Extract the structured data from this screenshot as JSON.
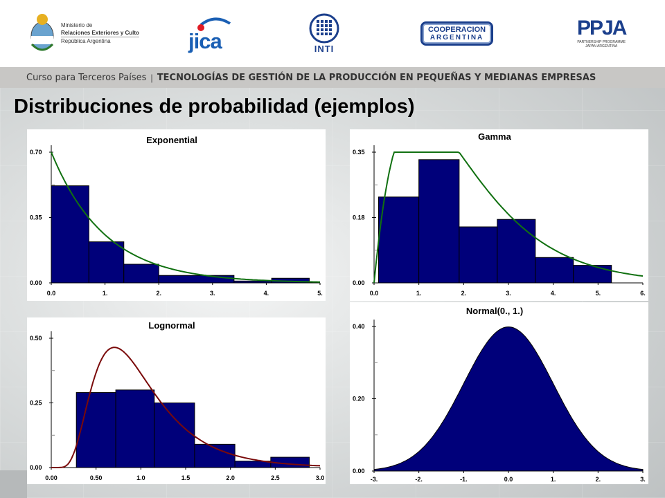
{
  "header": {
    "logos": {
      "ministry": {
        "line1": "Ministerio de",
        "line2": "Relaciones Exteriores y Culto",
        "line3": "República Argentina"
      },
      "jica": "jica",
      "inti": "INTI",
      "cooperacion": {
        "line1": "COOPERACION",
        "line2": "ARGENTINA"
      },
      "ppja": {
        "mark": "PPJA",
        "line1": "PARTNERSHIP PROGRAMME",
        "line2": "JAPAN ARGENTINA"
      }
    },
    "course": "Curso para Terceros Países",
    "course_title": "TECNOLOGÍAS DE GESTIÓN DE LA PRODUCCIÓN EN PEQUEÑAS Y MEDIANAS EMPRESAS"
  },
  "slide_title": "Distribuciones de probabilidad (ejemplos)",
  "chart_data": [
    {
      "type": "bar",
      "title": "Exponential",
      "xlim": [
        0,
        5
      ],
      "ylim": [
        0,
        0.7
      ],
      "xticks": [
        "0.0",
        "1.",
        "2.",
        "3.",
        "4.",
        "5."
      ],
      "yticks": [
        "0.00",
        "0.35",
        "0.70"
      ],
      "bins": [
        [
          0,
          0.7
        ],
        [
          0.7,
          1.35
        ],
        [
          1.35,
          2.0
        ],
        [
          2.0,
          3.4
        ],
        [
          3.4,
          4.1
        ],
        [
          4.1,
          4.8
        ]
      ],
      "values": [
        0.52,
        0.22,
        0.1,
        0.04,
        0.01,
        0.025
      ],
      "curve": {
        "name": "exponential",
        "rate": 1.0,
        "scale": 0.7,
        "color": "#107010"
      },
      "bar_color": "#00007a"
    },
    {
      "type": "bar",
      "title": "Gamma",
      "xlim": [
        0,
        6
      ],
      "ylim": [
        0,
        0.35
      ],
      "xticks": [
        "0.0",
        "1.",
        "2.",
        "3.",
        "4.",
        "5.",
        "6."
      ],
      "yticks": [
        "0.00",
        "0.18",
        "0.35"
      ],
      "bins": [
        [
          0.1,
          1.0
        ],
        [
          1.0,
          1.9
        ],
        [
          1.9,
          2.75
        ],
        [
          2.75,
          3.6
        ],
        [
          3.6,
          4.45
        ],
        [
          4.45,
          5.3
        ]
      ],
      "values": [
        0.23,
        0.33,
        0.15,
        0.17,
        0.068,
        0.047
      ],
      "curve": {
        "name": "gamma",
        "shape": 2.0,
        "scale": 1.0,
        "color": "#107010"
      },
      "bar_color": "#00007a"
    },
    {
      "type": "bar",
      "title": "Lognormal",
      "xlim": [
        0,
        3.0
      ],
      "ylim": [
        0,
        0.5
      ],
      "xticks": [
        "0.00",
        "0.50",
        "1.0",
        "1.5",
        "2.0",
        "2.5",
        "3.0"
      ],
      "yticks": [
        "0.00",
        "0.25",
        "0.50"
      ],
      "bins": [
        [
          0.28,
          0.72
        ],
        [
          0.72,
          1.15
        ],
        [
          1.15,
          1.6
        ],
        [
          1.6,
          2.05
        ],
        [
          2.05,
          2.45
        ],
        [
          2.45,
          2.88
        ]
      ],
      "values": [
        0.29,
        0.3,
        0.25,
        0.09,
        0.025,
        0.04
      ],
      "curve": {
        "name": "lognormal",
        "mu": -0.1,
        "sigma": 0.5,
        "color": "#7a0a0a"
      },
      "bar_color": "#00007a"
    },
    {
      "type": "area",
      "title": "Normal(0., 1.)",
      "xlim": [
        -3,
        3
      ],
      "ylim": [
        0,
        0.4
      ],
      "xticks": [
        "-3.",
        "-2.",
        "-1.",
        "0.0",
        "1.",
        "2.",
        "3."
      ],
      "yticks": [
        "0.00",
        "0.20",
        "0.40"
      ],
      "curve": {
        "name": "normal",
        "mean": 0,
        "sd": 1
      },
      "fill_color": "#00007a"
    }
  ]
}
